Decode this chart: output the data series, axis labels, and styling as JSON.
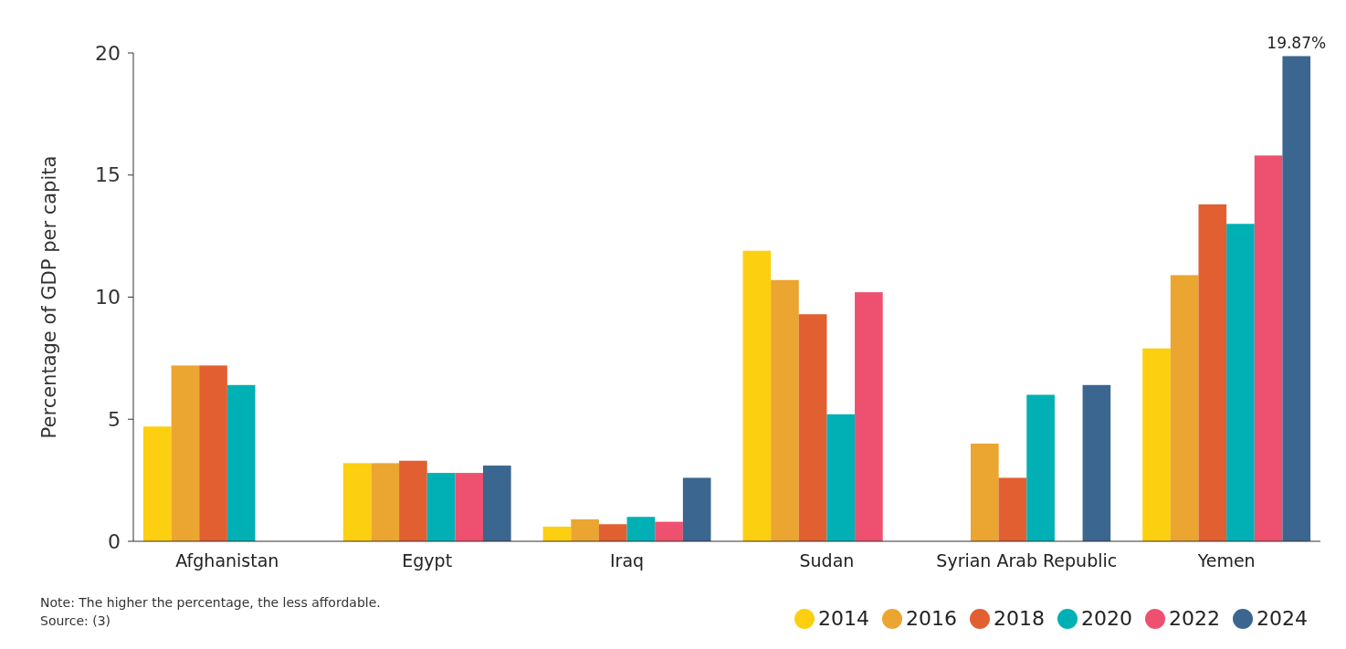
{
  "chart_data": {
    "type": "bar",
    "ylabel": "Percentage of GDP per capita",
    "categories": [
      "Afghanistan",
      "Egypt",
      "Iraq",
      "Sudan",
      "Syrian Arab Republic",
      "Yemen"
    ],
    "series": [
      {
        "name": "2014",
        "color": "#fccf10",
        "values": [
          4.7,
          3.2,
          0.6,
          11.9,
          null,
          7.9
        ]
      },
      {
        "name": "2016",
        "color": "#eba531",
        "values": [
          7.2,
          3.2,
          0.9,
          10.7,
          4.0,
          10.9
        ]
      },
      {
        "name": "2018",
        "color": "#e25f32",
        "values": [
          7.2,
          3.3,
          0.7,
          9.3,
          2.6,
          13.8
        ]
      },
      {
        "name": "2020",
        "color": "#00b0b5",
        "values": [
          6.4,
          2.8,
          1.0,
          5.2,
          6.0,
          13.0
        ]
      },
      {
        "name": "2022",
        "color": "#ee506f",
        "values": [
          null,
          2.8,
          0.8,
          10.2,
          null,
          15.8
        ]
      },
      {
        "name": "2024",
        "color": "#3b6690",
        "values": [
          null,
          3.1,
          2.6,
          null,
          6.4,
          19.87
        ],
        "value_labels": [
          null,
          null,
          null,
          null,
          null,
          "19.87%"
        ]
      }
    ],
    "ylim": [
      0,
      20
    ],
    "yticks": [
      0,
      5,
      10,
      15,
      20
    ],
    "grid": false,
    "legend": "bottom right",
    "annotations": [
      "Note: The higher the percentage, the less affordable.",
      "Source: (3)"
    ]
  }
}
